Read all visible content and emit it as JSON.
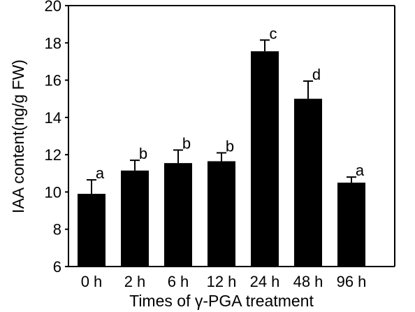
{
  "chart_data": {
    "type": "bar",
    "xlabel": "Times of γ-PGA treatment",
    "ylabel": "IAA content(ng/g FW)",
    "ylim": [
      6,
      20
    ],
    "yticks": [
      "6",
      "8",
      "10",
      "12",
      "14",
      "16",
      "18",
      "20"
    ],
    "yticks_values": [
      6,
      8,
      10,
      12,
      14,
      16,
      18,
      20
    ],
    "categories": [
      "0 h",
      "2 h",
      "6 h",
      "12 h",
      "24 h",
      "48 h",
      "96 h"
    ],
    "values": [
      9.9,
      11.15,
      11.55,
      11.65,
      17.55,
      15.0,
      10.5
    ],
    "errors": [
      0.75,
      0.55,
      0.7,
      0.45,
      0.6,
      0.95,
      0.3
    ],
    "significance_labels": [
      "a",
      "b",
      "b",
      "b",
      "c",
      "d",
      "a"
    ],
    "bar_color": "#000000",
    "grid": false
  }
}
